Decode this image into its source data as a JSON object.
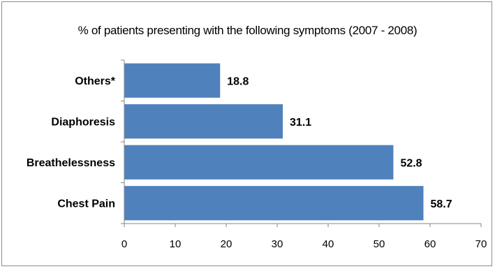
{
  "chart_data": {
    "type": "bar",
    "orientation": "horizontal",
    "title": "% of patients presenting with the following symptoms (2007 - 2008)",
    "xlabel": "",
    "ylabel": "",
    "categories": [
      "Others*",
      "Diaphoresis",
      "Breathelessness",
      "Chest Pain"
    ],
    "values": [
      18.8,
      31.1,
      52.8,
      58.7
    ],
    "data_labels": [
      "18.8",
      "31.1",
      "52.8",
      "58.7"
    ],
    "xlim": [
      0,
      70
    ],
    "ticks": [
      0,
      10,
      20,
      30,
      40,
      50,
      60,
      70
    ],
    "tick_labels": [
      "0",
      "10",
      "20",
      "30",
      "40",
      "50",
      "60",
      "70"
    ],
    "grid": false,
    "legend": "none",
    "bar_color": "#4f81bd"
  }
}
